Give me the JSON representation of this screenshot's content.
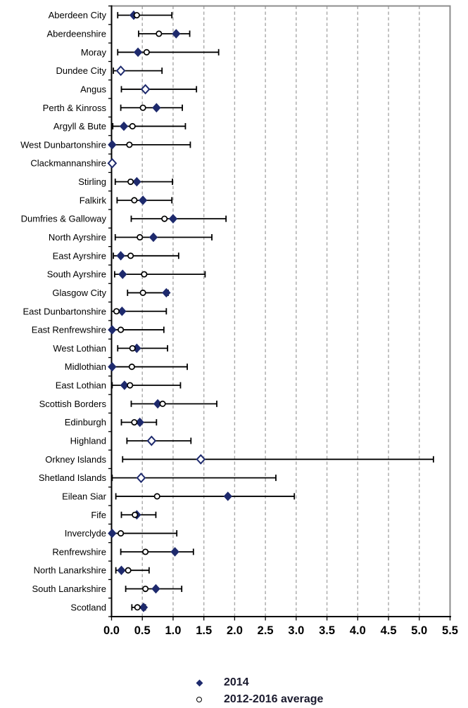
{
  "chart_data": {
    "type": "scatter",
    "subtype": "horizontal-dot-plot-with-error-bars",
    "title": "",
    "xlabel": "",
    "ylabel": "",
    "xlim": [
      0,
      5.5
    ],
    "x_tick_step": 0.5,
    "x_tick_labels": [
      "0.0",
      "0.5",
      "1.0",
      "1.5",
      "2.0",
      "2.5",
      "3.0",
      "3.5",
      "4.0",
      "4.5",
      "5.0",
      "5.5"
    ],
    "grid": "vertical-dashed",
    "legend_position": "bottom-center",
    "categories": [
      "Aberdeen City",
      "Aberdeenshire",
      "Moray",
      "Dundee City",
      "Angus",
      "Perth & Kinross",
      "Argyll & Bute",
      "West Dunbartonshire",
      "Clackmannanshire",
      "Stirling",
      "Falkirk",
      "Dumfries & Galloway",
      "North Ayrshire",
      "East Ayrshire",
      "South Ayrshire",
      "Glasgow City",
      "East Dunbartonshire",
      "East Renfrewshire",
      "West Lothian",
      "Midlothian",
      "East Lothian",
      "Scottish Borders",
      "Edinburgh",
      "Highland",
      "Orkney Islands",
      "Shetland Islands",
      "Eilean Siar",
      "Fife",
      "Inverclyde",
      "Renfrewshire",
      "North Lanarkshire",
      "South Lanarkshire",
      "Scotland"
    ],
    "series": [
      {
        "name": "2014",
        "marker": "filled-diamond",
        "color": "#1e2a6d",
        "values": [
          0.36,
          1.05,
          0.43,
          0.15,
          0.55,
          0.73,
          0.2,
          0.01,
          0.01,
          0.41,
          0.51,
          1.0,
          0.68,
          0.15,
          0.18,
          0.89,
          0.17,
          0.01,
          0.41,
          0.01,
          0.21,
          0.75,
          0.46,
          0.65,
          1.45,
          0.48,
          1.89,
          0.41,
          0.01,
          1.03,
          0.16,
          0.72,
          0.52
        ]
      },
      {
        "name": "2012-2016 average",
        "marker": "open-circle",
        "color": "#000000",
        "values": [
          0.41,
          0.77,
          0.57,
          0.15,
          0.55,
          0.51,
          0.34,
          0.29,
          0.01,
          0.31,
          0.37,
          0.86,
          0.46,
          0.31,
          0.53,
          0.51,
          0.08,
          0.15,
          0.34,
          0.33,
          0.3,
          0.83,
          0.37,
          0.65,
          1.45,
          0.48,
          0.74,
          0.38,
          0.15,
          0.55,
          0.27,
          0.55,
          0.42
        ]
      }
    ],
    "error_bars": {
      "attached_to": "2012-2016 average",
      "low": [
        0.1,
        0.44,
        0.1,
        0.03,
        0.16,
        0.15,
        0.02,
        0.0,
        0.0,
        0.06,
        0.09,
        0.32,
        0.06,
        0.03,
        0.05,
        0.26,
        0.0,
        0.0,
        0.1,
        0.0,
        0.01,
        0.32,
        0.16,
        0.25,
        0.18,
        0.01,
        0.07,
        0.16,
        0.0,
        0.15,
        0.07,
        0.23,
        0.33
      ],
      "high": [
        0.98,
        1.27,
        1.74,
        0.82,
        1.38,
        1.15,
        1.2,
        1.28,
        0.03,
        0.99,
        0.98,
        1.86,
        1.63,
        1.09,
        1.52,
        0.92,
        0.89,
        0.85,
        0.91,
        1.23,
        1.12,
        1.71,
        0.73,
        1.29,
        5.23,
        2.67,
        2.97,
        0.72,
        1.06,
        1.33,
        0.61,
        1.14,
        0.55
      ]
    },
    "legend": [
      {
        "label": "2014",
        "marker": "filled-diamond"
      },
      {
        "label": "2012-2016 average",
        "marker": "open-circle"
      }
    ],
    "colors": {
      "marker_fill": "#1e2a6d",
      "error_bar": "#000000",
      "gridline": "#a9a9a9",
      "axis": "#000000",
      "border": "#8c8c8c",
      "tick_label": "#000000",
      "category_label": "#000000",
      "legend_text": "#1a1a2e"
    }
  }
}
